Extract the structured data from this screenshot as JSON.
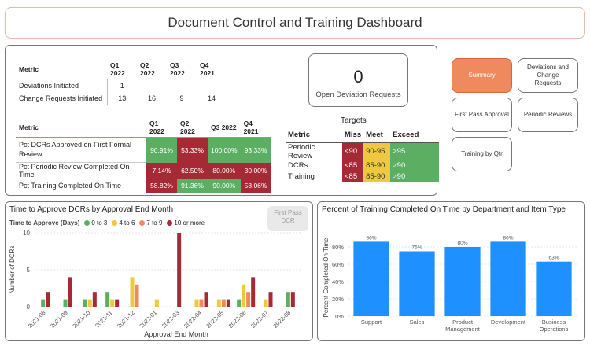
{
  "header": {
    "title": "Document Control and Training Dashboard"
  },
  "table1": {
    "columns": [
      "Metric",
      "Q1 2022",
      "Q2 2022",
      "Q3 2022",
      "Q4 2021"
    ],
    "rows": [
      {
        "metric": "Deviations Initiated",
        "values": [
          "1",
          "",
          "",
          ""
        ]
      },
      {
        "metric": "Change Requests Initiated",
        "values": [
          "13",
          "16",
          "9",
          "14"
        ]
      }
    ]
  },
  "table2": {
    "columns": [
      "Metric",
      "Q1 2022",
      "Q2 2022",
      "Q3 2022",
      "Q4 2021"
    ],
    "rows": [
      {
        "metric": "Pct DCRs Approved on First Formal Review",
        "values": [
          "90.91%",
          "53.33%",
          "100.00%",
          "93.33%"
        ],
        "status": [
          "green",
          "red",
          "green",
          "green"
        ]
      },
      {
        "metric": "Pct Periodic Review Completed On Time",
        "values": [
          "7.14%",
          "62.50%",
          "80.00%",
          "30.00%"
        ],
        "status": [
          "red",
          "red",
          "red",
          "red"
        ]
      },
      {
        "metric": "Pct Training Completed On Time",
        "values": [
          "58.82%",
          "91.36%",
          "90.00%",
          "58.06%"
        ],
        "status": [
          "red",
          "green",
          "green",
          "red"
        ]
      }
    ]
  },
  "kpi": {
    "value": "0",
    "label": "Open Deviation Requests"
  },
  "targets": {
    "title": "Targets",
    "columns": [
      "Metric",
      "Miss",
      "Meet",
      "Exceed"
    ],
    "rows": [
      {
        "metric": "Periodic Review",
        "miss": "<90",
        "meet": "90-95",
        "exceed": ">95"
      },
      {
        "metric": "DCRs",
        "miss": "<85",
        "meet": "85-90",
        "exceed": ">90"
      },
      {
        "metric": "Training",
        "miss": "<85",
        "meet": "85-90",
        "exceed": ">90"
      }
    ]
  },
  "nav": {
    "summary": "Summary",
    "deviations": "Deviations and Change Requests",
    "first_pass": "First Pass Approval",
    "periodic": "Periodic Reviews",
    "training": "Training by Qtr"
  },
  "chart1_ui": {
    "first_pass_button": "First Pass DCR"
  },
  "colors": {
    "green": "#5cae63",
    "yellow": "#efc840",
    "orange": "#ee8a5e",
    "red": "#a62a36",
    "blue": "#1e90ff"
  },
  "chart_data": [
    {
      "type": "bar",
      "title": "Time to Approve DCRs by Approval End Month",
      "xlabel": "Approval End Month",
      "ylabel": "Number of DCRs",
      "ylim": [
        0,
        10
      ],
      "yticks": [
        0,
        5,
        10
      ],
      "legend_title": "Time to Approve (Days)",
      "legend_position": "top-left",
      "categories": [
        "2021-08",
        "2021-09",
        "2021-10",
        "2021-11",
        "2021-12",
        "2022-01",
        "2022-03",
        "2022-04",
        "2022-05",
        "2022-06",
        "2022-07",
        "2022-08"
      ],
      "series": [
        {
          "name": "0 to 3",
          "color": "#5cae63",
          "values": [
            [
              0,
              1
            ],
            [
              1,
              1
            ],
            [
              2,
              1
            ],
            [
              3,
              2
            ],
            [
              9,
              1
            ],
            [
              11,
              2
            ]
          ]
        },
        {
          "name": "4 to 6",
          "color": "#efc840",
          "values": [
            [
              2,
              1
            ],
            [
              3,
              1
            ],
            [
              4,
              4
            ],
            [
              5,
              1
            ],
            [
              7,
              1
            ],
            [
              8,
              1
            ],
            [
              9,
              3
            ],
            [
              10,
              1
            ]
          ]
        },
        {
          "name": "7 to 9",
          "color": "#ee8a5e",
          "values": [
            [
              4,
              3
            ],
            [
              7,
              1
            ],
            [
              8,
              1
            ],
            [
              9,
              2
            ]
          ]
        },
        {
          "name": "10 or more",
          "color": "#a62a36",
          "values": [
            [
              0,
              2
            ],
            [
              1,
              4
            ],
            [
              2,
              2
            ],
            [
              3,
              1
            ],
            [
              6,
              10
            ],
            [
              7,
              2
            ],
            [
              8,
              1
            ],
            [
              9,
              4
            ],
            [
              10,
              2
            ],
            [
              11,
              2
            ]
          ]
        }
      ]
    },
    {
      "type": "bar",
      "title": "Percent of Training Completed On Time by Department and Item Type",
      "xlabel": "",
      "ylabel": "Percent Completed On Time",
      "ylim": [
        0,
        100
      ],
      "yticks": [
        "0%",
        "20%",
        "40%",
        "60%",
        "80%"
      ],
      "categories": [
        "Support",
        "Sales",
        "Product Management",
        "Development",
        "Business Operations"
      ],
      "values": [
        86,
        75,
        80,
        86,
        63
      ],
      "labels": [
        "86%",
        "75%",
        "80%",
        "86%",
        "63%"
      ]
    }
  ]
}
